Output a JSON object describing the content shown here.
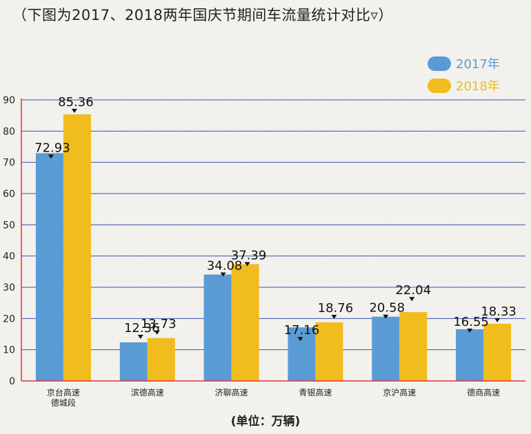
{
  "chart_data": {
    "type": "bar",
    "title": "（下图为2017、2018两年国庆节期间车流量统计对比▿）",
    "categories": [
      [
        "京台高速",
        "德城段"
      ],
      [
        "滨德高速"
      ],
      [
        "济聊高速"
      ],
      [
        "青银高速"
      ],
      [
        "京沪高速"
      ],
      [
        "德商高速"
      ]
    ],
    "series": [
      {
        "name": "2017年",
        "color": "#5b9bd5",
        "values": [
          72.93,
          12.36,
          34.08,
          17.16,
          20.58,
          16.55
        ]
      },
      {
        "name": "2018年",
        "color": "#f0bc1e",
        "values": [
          85.36,
          13.73,
          37.39,
          18.76,
          22.04,
          18.33
        ]
      }
    ],
    "data_labels": [
      [
        "72.93",
        "12.36",
        "34.08",
        "17.16",
        "20.58",
        "16.55"
      ],
      [
        "85.36",
        "13.73",
        "37.39",
        "18.76",
        "22.04",
        "18.33"
      ]
    ],
    "ylim": [
      0,
      90
    ],
    "yticks": [
      0,
      10,
      20,
      30,
      40,
      50,
      60,
      70,
      80,
      90
    ],
    "gridlines": true,
    "grid_color": "#3e4fa8",
    "axis_color": "#e0313a",
    "legend_position": "top-right",
    "unit_note": "(单位：万辆)"
  }
}
